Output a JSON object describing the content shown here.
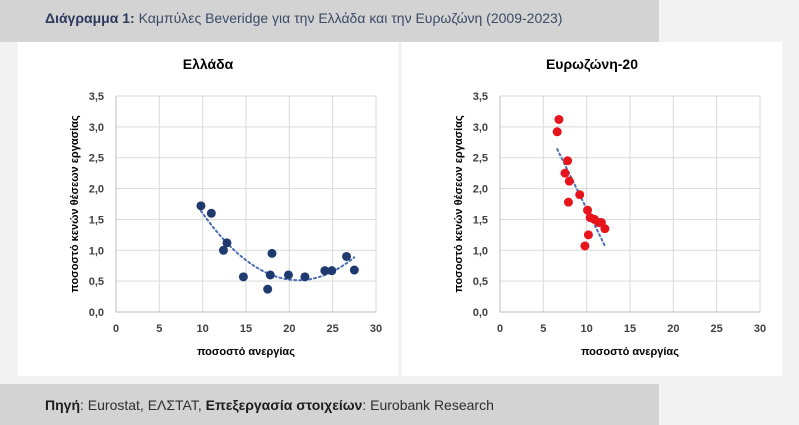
{
  "header": {
    "title_prefix": "Διάγραμμα 1:",
    "title_text": "Καμπύλες Beveridge για την Ελλάδα και την Ευρωζώνη (2009-2023)"
  },
  "footer": {
    "source_label": "Πηγή",
    "source_text": ": Eurostat, ΕΛΣΤΑΤ, ",
    "processing_label": "Επεξεργασία στοιχείων",
    "processing_text": ": Eurobank Research"
  },
  "chart_data": [
    {
      "type": "scatter",
      "title": "Ελλάδα",
      "xlabel": "ποσοστό ανεργίας",
      "ylabel": "ποσοστό κενών θέσεων εργασίας",
      "xlim": [
        0,
        30
      ],
      "ylim": [
        0,
        3.5
      ],
      "xticks": [
        0,
        5,
        10,
        15,
        20,
        25,
        30
      ],
      "yticks": [
        "0,0",
        "0,5",
        "1,0",
        "1,5",
        "2,0",
        "2,5",
        "3,0",
        "3,5"
      ],
      "color": "#1f3a6e",
      "trendline": "polynomial-dotted",
      "x": [
        9.8,
        11.0,
        12.4,
        12.8,
        14.7,
        17.5,
        17.8,
        18.0,
        19.9,
        21.8,
        24.1,
        24.9,
        26.6,
        27.5
      ],
      "y": [
        1.72,
        1.6,
        1.0,
        1.12,
        0.57,
        0.37,
        0.6,
        0.95,
        0.6,
        0.57,
        0.67,
        0.67,
        0.9,
        0.68
      ]
    },
    {
      "type": "scatter",
      "title": "Ευρωζώνη-20",
      "xlabel": "ποσοστό ανεργίας",
      "ylabel": "ποσοστό κενών θέσεων εργασίας",
      "xlim": [
        0,
        30
      ],
      "ylim": [
        0,
        3.5
      ],
      "xticks": [
        0,
        5,
        10,
        15,
        20,
        25,
        30
      ],
      "yticks": [
        "0,0",
        "0,5",
        "1,0",
        "1,5",
        "2,0",
        "2,5",
        "3,0",
        "3,5"
      ],
      "color": "#e8141c",
      "trendline": "linear-dotted",
      "x": [
        6.6,
        6.8,
        7.5,
        7.8,
        7.9,
        8.0,
        9.2,
        9.8,
        10.1,
        10.2,
        10.4,
        10.9,
        11.4,
        11.7,
        12.1
      ],
      "y": [
        2.92,
        3.12,
        2.25,
        2.45,
        1.78,
        2.12,
        1.9,
        1.07,
        1.65,
        1.25,
        1.53,
        1.5,
        1.45,
        1.45,
        1.35
      ]
    }
  ]
}
